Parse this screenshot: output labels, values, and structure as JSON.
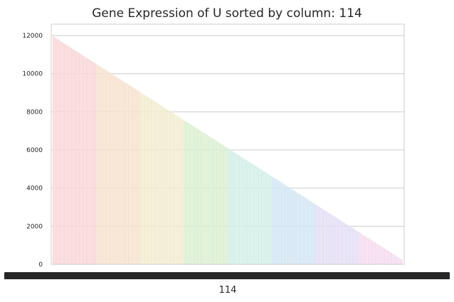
{
  "chart_data": {
    "type": "bar",
    "title": "Gene Expression of U sorted by column: 114",
    "xlabel": "114",
    "ylabel": "",
    "ylim": [
      0,
      12600
    ],
    "yticks": [
      0,
      2000,
      4000,
      6000,
      8000,
      10000,
      12000
    ],
    "grid": true,
    "legend": "none",
    "bar_count": 200,
    "values_first": 11950,
    "values_last": 250,
    "palette": [
      "#f9d7d7",
      "#f7e2cf",
      "#f2ecd0",
      "#dcefd2",
      "#d3efe7",
      "#d4e6f4",
      "#e4dff5",
      "#f5dcef"
    ]
  }
}
